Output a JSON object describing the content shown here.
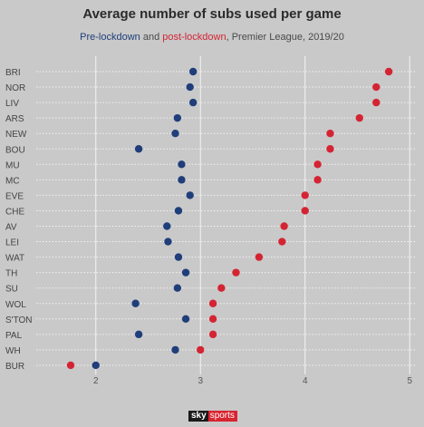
{
  "chart_data": {
    "type": "scatter",
    "title": "Average number of subs used per game",
    "subtitle": {
      "pre_label": "Pre-lockdown",
      "and_text": " and ",
      "post_label": "post-lockdown",
      "rest": ", Premier League, 2019/20"
    },
    "x_ticks": [
      "2",
      "3",
      "4",
      "5"
    ],
    "xlim": [
      1.5,
      5.05
    ],
    "grid": true,
    "colors": {
      "pre": "#1f3e7a",
      "post": "#d42433"
    },
    "categories": [
      "BRI",
      "NOR",
      "LIV",
      "ARS",
      "NEW",
      "BOU",
      "MU",
      "MC",
      "EVE",
      "CHE",
      "AV",
      "LEI",
      "WAT",
      "TH",
      "SU",
      "WOL",
      "S'TON",
      "PAL",
      "WH",
      "BUR"
    ],
    "series": [
      {
        "name": "Pre-lockdown",
        "values": [
          2.93,
          2.9,
          2.93,
          2.78,
          2.76,
          2.41,
          2.82,
          2.82,
          2.9,
          2.79,
          2.68,
          2.69,
          2.79,
          2.86,
          2.78,
          2.38,
          2.86,
          2.41,
          2.76,
          2.0
        ]
      },
      {
        "name": "post-lockdown",
        "values": [
          4.8,
          4.68,
          4.68,
          4.52,
          4.24,
          4.24,
          4.12,
          4.12,
          4.0,
          4.0,
          3.8,
          3.78,
          3.56,
          3.34,
          3.2,
          3.12,
          3.12,
          3.12,
          3.0,
          1.76
        ]
      }
    ]
  },
  "brand": {
    "sky": "sky",
    "sports": "sports"
  }
}
